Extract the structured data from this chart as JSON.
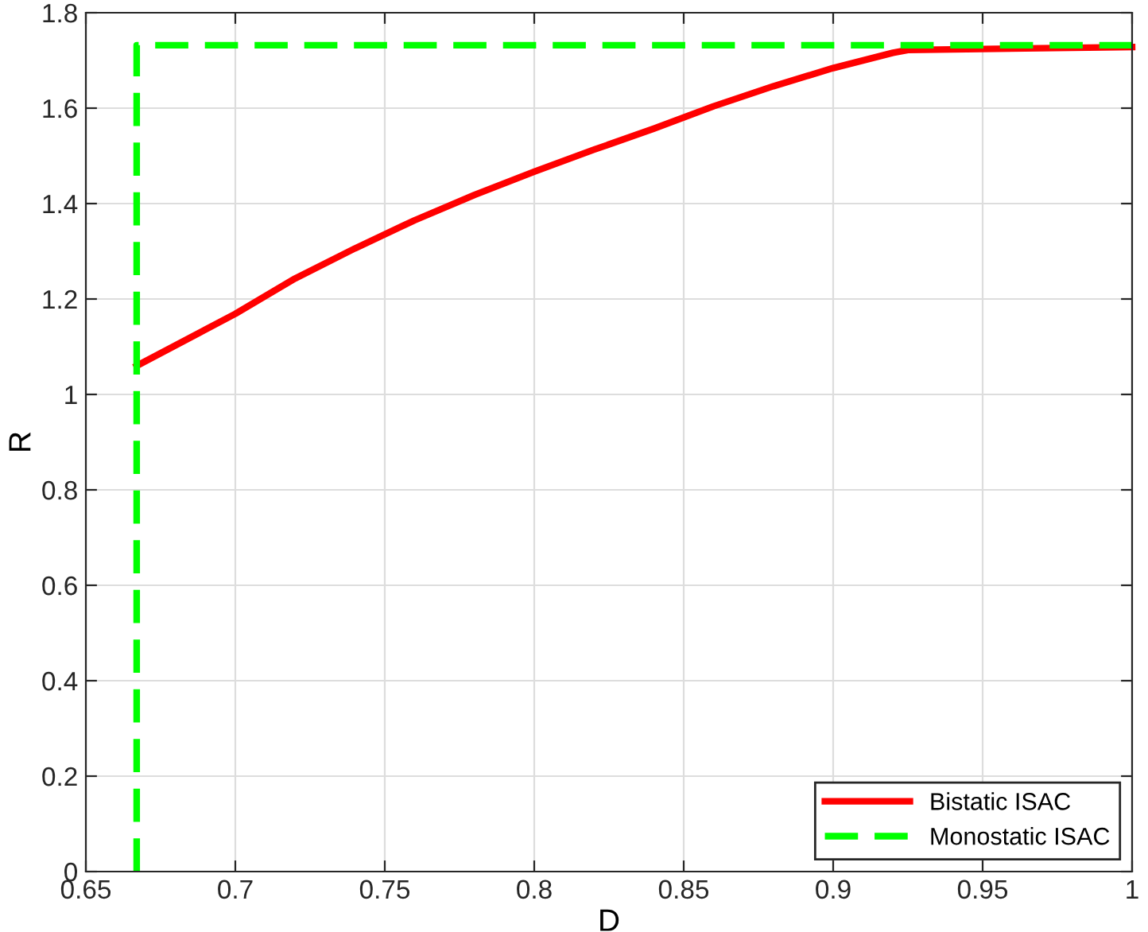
{
  "chart_data": {
    "type": "line",
    "xlabel": "D",
    "ylabel": "R",
    "series": [
      {
        "name": "Bistatic ISAC",
        "color": "#ff0000",
        "line_style": "solid",
        "x": [
          0.667,
          0.7,
          0.72,
          0.74,
          0.76,
          0.78,
          0.8,
          0.82,
          0.84,
          0.86,
          0.88,
          0.9,
          0.92,
          0.925,
          1.0
        ],
        "values": [
          1.06,
          1.169,
          1.243,
          1.306,
          1.365,
          1.418,
          1.467,
          1.513,
          1.557,
          1.604,
          1.646,
          1.684,
          1.716,
          1.722,
          1.728
        ]
      },
      {
        "name": "Monostatic ISAC",
        "color": "#00ff00",
        "line_style": "dashed",
        "x": [
          0.667,
          0.667,
          1.0
        ],
        "values": [
          0,
          1.732,
          1.732
        ]
      }
    ],
    "xlim": [
      0.65,
      1
    ],
    "ylim": [
      0,
      1.8
    ],
    "xticks": [
      0.65,
      0.7,
      0.75,
      0.8,
      0.85,
      0.9,
      0.95,
      1
    ],
    "yticks": [
      0,
      0.2,
      0.4,
      0.6,
      0.8,
      1,
      1.2,
      1.4,
      1.6,
      1.8
    ],
    "grid": true,
    "legend": "bottom right",
    "marker": "none"
  }
}
